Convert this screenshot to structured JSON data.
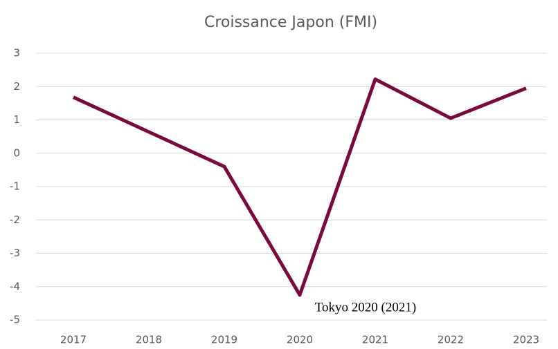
{
  "chart_data": {
    "type": "line",
    "title": "Croissance Japon (FMI)",
    "categories": [
      "2017",
      "2018",
      "2019",
      "2020",
      "2021",
      "2022",
      "2023"
    ],
    "series": [
      {
        "name": "Croissance",
        "color": "#7a0a3e",
        "values": [
          1.68,
          0.64,
          -0.4,
          -4.25,
          2.22,
          1.05,
          1.95
        ]
      }
    ],
    "ylim": [
      -5,
      3
    ],
    "yticks": [
      -5,
      -4,
      -3,
      -2,
      -1,
      0,
      1,
      2,
      3
    ],
    "grid": true,
    "annotation": "Tokyo 2020 (2021)"
  }
}
